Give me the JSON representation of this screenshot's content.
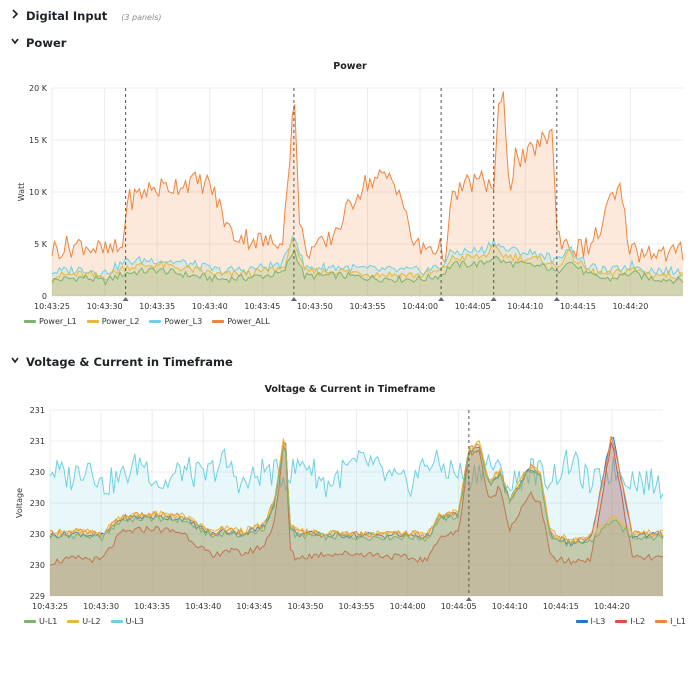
{
  "rows": [
    {
      "title": "Digital Input",
      "subtitle": "(3 panels)",
      "collapsed": true
    },
    {
      "title": "Power",
      "collapsed": false
    },
    {
      "title": "Voltage & Current in Timeframe",
      "collapsed": false
    }
  ],
  "panels": {
    "power": {
      "title": "Power",
      "ylabel": "Watt"
    },
    "vc": {
      "title": "Voltage & Current in Timeframe",
      "ylabel": "Voltage"
    }
  },
  "colors": {
    "green": "#7eb26d",
    "yellow": "#eab839",
    "lightblue": "#6ed0e0",
    "orange": "#ef843c",
    "blue": "#1f78c1",
    "red": "#e24d42"
  },
  "chart_data": [
    {
      "type": "area",
      "title": "Power",
      "ylabel": "Watt",
      "yticks": [
        "0",
        "5 K",
        "10 K",
        "15 K",
        "20 K"
      ],
      "ylim": [
        0,
        20000
      ],
      "xticks": [
        "10:43:25",
        "10:43:30",
        "10:43:35",
        "10:43:40",
        "10:43:45",
        "10:43:50",
        "10:43:55",
        "10:44:00",
        "10:44:05",
        "10:44:10",
        "10:44:15",
        "10:44:20"
      ],
      "xlim_seconds": [
        -5,
        55
      ],
      "annotation_times_seconds": [
        2,
        18,
        32,
        37,
        43
      ],
      "grid": true,
      "legend_position": "bottom-left",
      "series": [
        {
          "name": "Power_L1",
          "color": "#7eb26d",
          "x_seconds": [
            -5,
            -2,
            0,
            2,
            5,
            8,
            11,
            14,
            17,
            18,
            19,
            22,
            26,
            30,
            32,
            33,
            36,
            37,
            38,
            40,
            42,
            43,
            44,
            46,
            48,
            50,
            52,
            55
          ],
          "values": [
            1500,
            1800,
            1400,
            2200,
            2500,
            2000,
            1600,
            1800,
            2200,
            4500,
            1900,
            2000,
            1700,
            1600,
            2000,
            3000,
            3100,
            3800,
            3200,
            3000,
            2800,
            2200,
            3500,
            2000,
            1600,
            2200,
            1700,
            1500
          ]
        },
        {
          "name": "Power_L2",
          "color": "#eab839",
          "x_seconds": [
            -5,
            -2,
            0,
            2,
            5,
            8,
            11,
            14,
            17,
            18,
            19,
            22,
            26,
            30,
            32,
            33,
            36,
            37,
            38,
            40,
            42,
            43,
            44,
            46,
            48,
            50,
            52,
            55
          ],
          "values": [
            1900,
            2100,
            1800,
            2800,
            3000,
            2600,
            2000,
            2200,
            2700,
            5500,
            2300,
            2400,
            2100,
            2000,
            2400,
            3600,
            3800,
            4600,
            3900,
            3600,
            3400,
            2700,
            4200,
            2400,
            2000,
            2600,
            2100,
            1900
          ]
        },
        {
          "name": "Power_L3",
          "color": "#6ed0e0",
          "x_seconds": [
            -5,
            -2,
            0,
            2,
            5,
            8,
            11,
            14,
            17,
            18,
            19,
            22,
            26,
            30,
            32,
            33,
            36,
            37,
            38,
            40,
            42,
            43,
            44,
            46,
            48,
            50,
            52,
            55
          ],
          "values": [
            2300,
            2600,
            2200,
            3300,
            3500,
            3100,
            2400,
            2600,
            3100,
            6200,
            2700,
            2800,
            2500,
            2400,
            2800,
            4200,
            4400,
            5300,
            4500,
            4200,
            3900,
            3200,
            4800,
            2800,
            2300,
            3000,
            2500,
            2300
          ]
        },
        {
          "name": "Power_ALL",
          "color": "#ef843c",
          "x_seconds": [
            -5,
            -2,
            0,
            1.8,
            2,
            4,
            6,
            8,
            10,
            12,
            14,
            16,
            17,
            17.5,
            18,
            18.5,
            19,
            21,
            23,
            24,
            25,
            27,
            28,
            29,
            30,
            31,
            32,
            32.5,
            33,
            34,
            35,
            36,
            37,
            37.5,
            38,
            38.5,
            39,
            40,
            41,
            42,
            42.5,
            43,
            44,
            45,
            46,
            47,
            48,
            49,
            50,
            51,
            52,
            53,
            55
          ],
          "values": [
            4500,
            5000,
            4200,
            4600,
            9000,
            10200,
            10500,
            11000,
            10800,
            6000,
            5500,
            5000,
            6000,
            12000,
            19500,
            8000,
            4500,
            4800,
            8000,
            10000,
            11000,
            11500,
            10500,
            6000,
            4400,
            4800,
            4500,
            4200,
            9000,
            10500,
            11000,
            11000,
            10500,
            18000,
            19000,
            10000,
            13500,
            13000,
            14500,
            15000,
            17000,
            6000,
            5000,
            4500,
            4800,
            6000,
            9000,
            10000,
            4500,
            4200,
            4500,
            4000,
            4200
          ]
        }
      ]
    },
    {
      "type": "area",
      "title": "Voltage & Current in Timeframe",
      "ylabel": "Voltage",
      "yticks": [
        "229",
        "230",
        "230",
        "230",
        "230",
        "231",
        "231"
      ],
      "ylim": [
        229.0,
        231.2
      ],
      "xticks": [
        "10:43:25",
        "10:43:30",
        "10:43:35",
        "10:43:40",
        "10:43:45",
        "10:43:50",
        "10:43:55",
        "10:44:00",
        "10:44:05",
        "10:44:10",
        "10:44:15",
        "10:44:20"
      ],
      "xlim_seconds": [
        -5,
        55
      ],
      "annotation_times_seconds": [
        36
      ],
      "grid": true,
      "series": [
        {
          "name": "U-L1",
          "color": "#7eb26d",
          "legend": "left",
          "x_seconds": [
            -5,
            -2,
            0,
            2,
            5,
            8,
            11,
            12,
            14,
            16,
            17,
            18,
            18.5,
            19,
            22,
            26,
            30,
            32,
            33,
            35,
            36,
            37,
            38,
            39,
            40,
            42,
            43,
            44,
            46,
            48,
            50,
            52,
            55
          ],
          "values": [
            229.7,
            229.72,
            229.68,
            229.9,
            229.92,
            229.9,
            229.7,
            229.75,
            229.72,
            229.8,
            230.1,
            230.9,
            229.8,
            229.72,
            229.7,
            229.7,
            229.7,
            229.68,
            229.9,
            229.95,
            230.7,
            230.75,
            230.3,
            230.45,
            230.1,
            230.5,
            230.4,
            229.7,
            229.6,
            229.65,
            229.9,
            229.7,
            229.7
          ]
        },
        {
          "name": "U-L2",
          "color": "#eab839",
          "legend": "left",
          "x_seconds": [
            -5,
            -2,
            0,
            2,
            5,
            8,
            11,
            12,
            14,
            16,
            17,
            18,
            18.5,
            19,
            22,
            26,
            30,
            32,
            33,
            35,
            36,
            37,
            38,
            39,
            40,
            42,
            43,
            44,
            46,
            48,
            50,
            52,
            55
          ],
          "values": [
            229.75,
            229.77,
            229.73,
            229.95,
            229.97,
            229.95,
            229.75,
            229.8,
            229.77,
            229.85,
            230.15,
            230.95,
            229.85,
            229.77,
            229.75,
            229.75,
            229.75,
            229.73,
            229.95,
            230.0,
            230.75,
            230.8,
            230.35,
            230.5,
            230.15,
            230.55,
            230.45,
            229.75,
            229.65,
            229.7,
            229.95,
            229.75,
            229.75
          ]
        },
        {
          "name": "U-L3",
          "color": "#6ed0e0",
          "legend": "left",
          "x_seconds": [
            -5,
            -3,
            -1,
            0,
            2,
            4,
            6,
            8,
            10,
            12,
            14,
            16,
            18,
            20,
            22,
            24,
            26,
            28,
            30,
            32,
            34,
            36,
            38,
            40,
            42,
            44,
            46,
            48,
            50,
            52,
            55
          ],
          "values": [
            230.5,
            230.4,
            230.6,
            230.3,
            230.4,
            230.6,
            230.3,
            230.5,
            230.4,
            230.6,
            230.3,
            230.5,
            230.4,
            230.6,
            230.3,
            230.5,
            230.6,
            230.4,
            230.3,
            230.6,
            230.5,
            230.4,
            230.6,
            230.3,
            230.5,
            230.4,
            230.6,
            230.3,
            230.5,
            230.4,
            230.3
          ]
        },
        {
          "name": "I-L3",
          "color": "#1f78c1",
          "legend": "right",
          "x_seconds": [
            -5,
            -2,
            0,
            2,
            5,
            8,
            11,
            12,
            14,
            16,
            17,
            18,
            18.5,
            19,
            22,
            26,
            30,
            32,
            33,
            35,
            36,
            37,
            38,
            39,
            40,
            42,
            43,
            44,
            46,
            48,
            50,
            52,
            55
          ],
          "values": [
            229.72,
            229.74,
            229.7,
            229.92,
            229.94,
            229.92,
            229.72,
            229.77,
            229.74,
            229.82,
            230.12,
            230.95,
            229.82,
            229.74,
            229.72,
            229.72,
            229.72,
            229.7,
            229.92,
            229.97,
            230.72,
            230.77,
            230.32,
            230.47,
            230.12,
            230.52,
            230.42,
            229.72,
            229.62,
            229.67,
            230.95,
            229.72,
            229.72
          ]
        },
        {
          "name": "I-L2",
          "color": "#e24d42",
          "legend": "right",
          "x_seconds": [
            -5,
            -2,
            0,
            2,
            5,
            8,
            11,
            12,
            14,
            16,
            17,
            18,
            18.5,
            19,
            22,
            26,
            30,
            32,
            33,
            35,
            36,
            37,
            38,
            39,
            40,
            42,
            43,
            44,
            46,
            48,
            50,
            52,
            55
          ],
          "values": [
            229.4,
            229.45,
            229.42,
            229.75,
            229.8,
            229.75,
            229.45,
            229.55,
            229.5,
            229.6,
            229.9,
            230.9,
            229.55,
            229.45,
            229.5,
            229.5,
            229.45,
            229.42,
            229.7,
            229.75,
            230.7,
            230.72,
            230.1,
            230.3,
            229.8,
            230.2,
            230.1,
            229.45,
            229.4,
            229.45,
            230.85,
            229.45,
            229.45
          ]
        },
        {
          "name": "I_L1",
          "color": "#ef843c",
          "legend": "right",
          "x_seconds": [
            -5,
            -2,
            0,
            2,
            5,
            8,
            11,
            12,
            14,
            16,
            17,
            18,
            18.5,
            19,
            22,
            26,
            30,
            32,
            33,
            35,
            36,
            37,
            38,
            39,
            40,
            42,
            43,
            44,
            46,
            48,
            50,
            52,
            55
          ],
          "values": [
            229.74,
            229.76,
            229.72,
            229.94,
            229.96,
            229.94,
            229.74,
            229.79,
            229.76,
            229.84,
            230.14,
            230.93,
            229.84,
            229.76,
            229.74,
            229.74,
            229.74,
            229.72,
            229.94,
            229.99,
            230.74,
            230.79,
            230.34,
            230.49,
            230.14,
            230.54,
            230.44,
            229.74,
            229.64,
            229.69,
            230.9,
            229.74,
            229.74
          ]
        }
      ]
    }
  ]
}
